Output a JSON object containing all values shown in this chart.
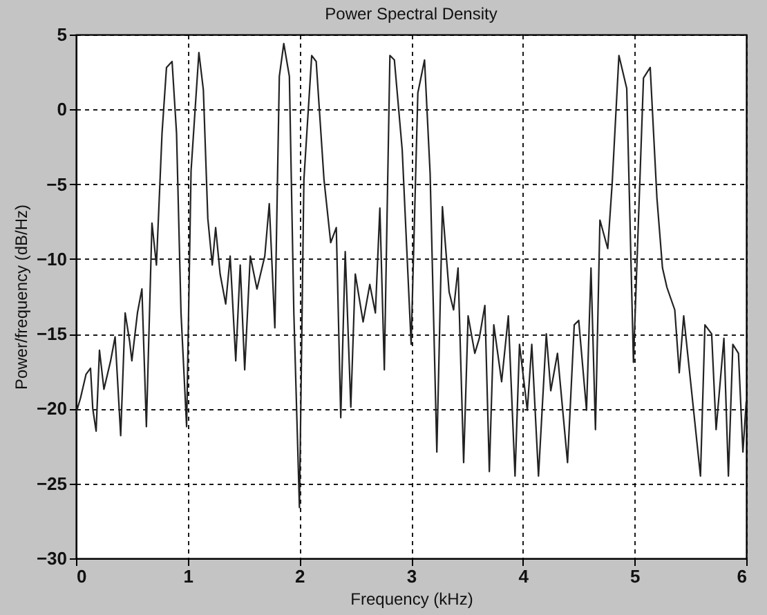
{
  "chart_data": {
    "type": "line",
    "title": "Power Spectral Density",
    "xlabel": "Frequency (kHz)",
    "ylabel": "Power/frequency (dB/Hz)",
    "x": [
      0,
      0.04,
      0.09,
      0.13,
      0.15,
      0.18,
      0.21,
      0.25,
      0.31,
      0.35,
      0.4,
      0.44,
      0.48,
      0.5,
      0.55,
      0.59,
      0.63,
      0.68,
      0.72,
      0.77,
      0.81,
      0.86,
      0.9,
      0.94,
      0.99,
      1.03,
      1.1,
      1.14,
      1.18,
      1.22,
      1.25,
      1.29,
      1.34,
      1.38,
      1.43,
      1.47,
      1.51,
      1.56,
      1.62,
      1.69,
      1.73,
      1.78,
      1.82,
      1.86,
      1.91,
      1.95,
      2.0,
      2.04,
      2.11,
      2.15,
      2.22,
      2.28,
      2.33,
      2.37,
      2.41,
      2.46,
      2.5,
      2.57,
      2.63,
      2.68,
      2.72,
      2.76,
      2.81,
      2.85,
      2.92,
      3.0,
      3.06,
      3.12,
      3.17,
      3.23,
      3.28,
      3.34,
      3.38,
      3.42,
      3.47,
      3.51,
      3.57,
      3.61,
      3.66,
      3.7,
      3.74,
      3.81,
      3.87,
      3.93,
      3.97,
      4.04,
      4.08,
      4.14,
      4.21,
      4.25,
      4.31,
      4.4,
      4.46,
      4.5,
      4.57,
      4.61,
      4.65,
      4.69,
      4.76,
      4.8,
      4.86,
      4.93,
      4.99,
      5.08,
      5.14,
      5.2,
      5.25,
      5.29,
      5.36,
      5.4,
      5.44,
      5.51,
      5.59,
      5.63,
      5.69,
      5.73,
      5.8,
      5.84,
      5.88,
      5.93,
      5.97,
      6.0
    ],
    "series": [
      {
        "color": "#222222",
        "values": [
          -20.3,
          -19.3,
          -17.7,
          -17.3,
          -20,
          -21.5,
          -16.1,
          -18.7,
          -16.8,
          -15.2,
          -21.8,
          -13.6,
          -15.5,
          -16.8,
          -13.6,
          -12,
          -21.2,
          -7.6,
          -10.4,
          -1.6,
          2.8,
          3.2,
          -1.6,
          -13.6,
          -21.2,
          -4.1,
          3.8,
          1.3,
          -7.3,
          -10.4,
          -7.9,
          -11,
          -13,
          -9.8,
          -16.8,
          -10.4,
          -17.4,
          -9.8,
          -12,
          -9.8,
          -6.3,
          -14.6,
          2.2,
          4.4,
          2.2,
          -13.6,
          -26.6,
          -4.7,
          3.6,
          3.2,
          -4.7,
          -8.9,
          -7.9,
          -20.6,
          -9.5,
          -19.9,
          -11,
          -14.2,
          -11.7,
          -13.6,
          -6.6,
          -17.4,
          3.6,
          3.3,
          -2.7,
          -15.7,
          1.1,
          3.3,
          -4.3,
          -22.9,
          -6.5,
          -12.2,
          -13.4,
          -10.6,
          -23.6,
          -13.8,
          -16.3,
          -15.3,
          -13.1,
          -24.2,
          -14.4,
          -18.2,
          -13.8,
          -24.5,
          -15.7,
          -20.1,
          -15.7,
          -24.5,
          -15,
          -18.8,
          -16.3,
          -23.6,
          -14.4,
          -14.1,
          -20.1,
          -10.6,
          -21.4,
          -7.4,
          -9.3,
          -4.9,
          3.6,
          1.4,
          -16.9,
          2.1,
          2.8,
          -5.9,
          -10.6,
          -11.9,
          -13.4,
          -17.6,
          -13.8,
          -18.8,
          -24.5,
          -14.4,
          -15,
          -21.4,
          -15.3,
          -24.5,
          -15.7,
          -16.3,
          -22.9,
          -19.5
        ]
      }
    ],
    "xlim": [
      0,
      6
    ],
    "xticks": [
      0,
      1,
      2,
      3,
      4,
      5,
      6
    ],
    "ylim": [
      -30,
      5
    ],
    "yticks": [
      -30,
      -25,
      -20,
      -15,
      -10,
      -5,
      0,
      5
    ],
    "grid": true,
    "line_style": "solid",
    "marker": "none"
  }
}
